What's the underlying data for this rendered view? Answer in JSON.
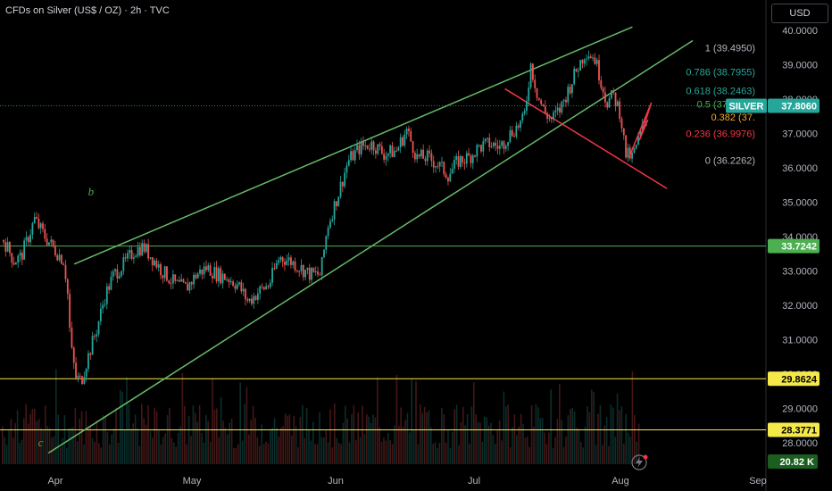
{
  "title": "CFDs on Silver (US$ / OZ) · 2h · TVC",
  "currency_button": "USD",
  "colors": {
    "up": "#26a69a",
    "down": "#ef5350",
    "channel": "#66bb6a",
    "redline": "#f23645",
    "yellow": "#f5e94a",
    "green_level": "#4caf50",
    "axis_text": "#b2b5be"
  },
  "chart_data": {
    "type": "candlestick",
    "y_ticks": [
      "40.0000",
      "39.0000",
      "38.0000",
      "37.0000",
      "36.0000",
      "35.0000",
      "34.0000",
      "33.0000",
      "32.0000",
      "31.0000",
      "30.0000",
      "29.0000",
      "28.0000"
    ],
    "x_ticks": [
      "Apr",
      "May",
      "Jun",
      "Jul",
      "Aug",
      "Sep"
    ],
    "ylim": [
      27.5,
      40.5
    ],
    "price_path": [
      [
        0.0,
        33.9
      ],
      [
        0.6,
        33.3
      ],
      [
        1.0,
        33.4
      ],
      [
        1.3,
        33.8
      ],
      [
        1.8,
        34.5
      ],
      [
        2.4,
        34.0
      ],
      [
        3.0,
        33.6
      ],
      [
        3.5,
        33.3
      ],
      [
        3.7,
        32.5
      ],
      [
        3.9,
        30.8
      ],
      [
        4.2,
        29.9
      ],
      [
        4.5,
        29.8
      ],
      [
        4.9,
        30.5
      ],
      [
        5.4,
        31.3
      ],
      [
        5.9,
        32.3
      ],
      [
        6.4,
        32.9
      ],
      [
        7.0,
        33.2
      ],
      [
        7.6,
        33.6
      ],
      [
        8.1,
        33.7
      ],
      [
        8.6,
        33.4
      ],
      [
        9.2,
        33.0
      ],
      [
        10.0,
        32.6
      ],
      [
        10.6,
        32.5
      ],
      [
        11.2,
        32.9
      ],
      [
        11.8,
        33.1
      ],
      [
        12.4,
        32.9
      ],
      [
        13.0,
        32.8
      ],
      [
        13.6,
        32.6
      ],
      [
        14.2,
        32.1
      ],
      [
        14.8,
        32.4
      ],
      [
        15.4,
        32.6
      ],
      [
        16.0,
        33.4
      ],
      [
        16.6,
        33.3
      ],
      [
        17.2,
        33.1
      ],
      [
        17.8,
        32.9
      ],
      [
        18.4,
        32.9
      ],
      [
        18.8,
        34.3
      ],
      [
        19.4,
        35.2
      ],
      [
        20.0,
        36.2
      ],
      [
        20.7,
        36.6
      ],
      [
        21.4,
        36.7
      ],
      [
        22.1,
        36.4
      ],
      [
        22.8,
        36.5
      ],
      [
        23.4,
        37.1
      ],
      [
        24.0,
        36.3
      ],
      [
        24.6,
        36.3
      ],
      [
        25.2,
        36.1
      ],
      [
        25.8,
        35.8
      ],
      [
        26.4,
        36.2
      ],
      [
        27.0,
        36.3
      ],
      [
        27.6,
        36.6
      ],
      [
        28.2,
        36.7
      ],
      [
        28.8,
        36.6
      ],
      [
        29.4,
        37.0
      ],
      [
        30.2,
        37.4
      ],
      [
        30.6,
        39.0
      ],
      [
        31.0,
        38.1
      ],
      [
        31.4,
        37.6
      ],
      [
        31.8,
        37.4
      ],
      [
        32.3,
        37.7
      ],
      [
        32.8,
        38.3
      ],
      [
        33.3,
        38.9
      ],
      [
        33.8,
        39.4
      ],
      [
        34.3,
        39.2
      ],
      [
        34.7,
        38.5
      ],
      [
        35.0,
        37.9
      ],
      [
        35.4,
        38.1
      ],
      [
        35.8,
        37.6
      ],
      [
        36.1,
        36.4
      ],
      [
        36.5,
        36.3
      ],
      [
        36.9,
        36.9
      ],
      [
        37.4,
        37.6
      ]
    ],
    "volume_seed": 7,
    "fib_levels": [
      {
        "label": "1 (39.4950)",
        "value": 39.495,
        "color": "#b2b5be"
      },
      {
        "label": "0.786 (38.7955)",
        "value": 38.7955,
        "color": "#26a69a"
      },
      {
        "label": "0.618 (38.2463)",
        "value": 38.2463,
        "color": "#26a69a"
      },
      {
        "label": "0.5 (37.8606)",
        "value": 37.8606,
        "color": "#4caf50"
      },
      {
        "label": "0.382 (37.",
        "value": 37.4749,
        "color": "#f5a623"
      },
      {
        "label": "0.236 (36.9976)",
        "value": 36.9976,
        "color": "#f23645"
      },
      {
        "label": "0 (36.2262)",
        "value": 36.2262,
        "color": "#b2b5be"
      }
    ],
    "levels": [
      {
        "label": "33.7242",
        "value": 33.7242,
        "color": "#4caf50",
        "text_color": "#ffffff"
      },
      {
        "label": "29.8624",
        "value": 29.8624,
        "color": "#f5e94a",
        "text_color": "#000000"
      },
      {
        "label": "28.3771",
        "value": 28.3771,
        "color": "#f5e94a",
        "text_color": "#000000"
      }
    ],
    "current_symbol": "SILVER",
    "current_price": "37.8060",
    "current_value": 37.806,
    "volume_label": "20.82 K",
    "wave_labels": [
      {
        "text": "b",
        "x": 4.9,
        "y": 35.2
      },
      {
        "text": "c",
        "x": 2.0,
        "y": 27.9
      }
    ]
  }
}
